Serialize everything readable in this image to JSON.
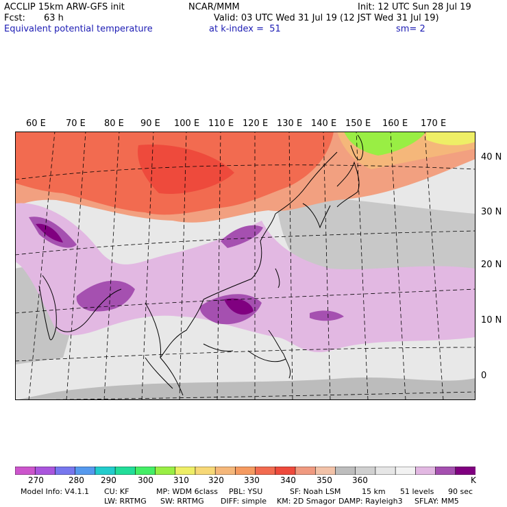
{
  "header": {
    "model": "ACCLIP 15km ARW-GFS init",
    "org": "NCAR/MMM",
    "init": "Init: 12 UTC Sun 28 Jul 19",
    "fcst_label": "Fcst:",
    "fcst_value": "63 h",
    "valid": "Valid: 03 UTC Wed 31 Jul 19 (12 JST Wed 31 Jul 19)",
    "field": "Equivalent potential temperature",
    "level": "at k-index =  51",
    "smooth": "sm= 2"
  },
  "map": {
    "longitude_labels": [
      "60 E",
      "70 E",
      "80 E",
      "90 E",
      "100 E",
      "110 E",
      "120 E",
      "130 E",
      "140 E",
      "150 E",
      "160 E",
      "170 E"
    ],
    "latitude_labels": [
      "40 N",
      "30 N",
      "20 N",
      "10 N",
      "0"
    ]
  },
  "colorbar": {
    "colors": [
      "#cc55cc",
      "#aa55dd",
      "#7777ee",
      "#5599ee",
      "#22cccc",
      "#22dd99",
      "#44ee66",
      "#99ee44",
      "#eeee66",
      "#f7d877",
      "#f5b77a",
      "#f59a60",
      "#f26b50",
      "#ee4a3c",
      "#f09a80",
      "#f2c2a8",
      "#bdbdbd",
      "#d0d0d0",
      "#e6e6e6",
      "#f2f2f2",
      "#e2b8e2",
      "#a550b0",
      "#800080"
    ],
    "labels": [
      "270",
      "280",
      "290",
      "300",
      "310",
      "320",
      "330",
      "340",
      "350",
      "360",
      "K"
    ]
  },
  "footer": {
    "line1": [
      "Model Info: V4.1.1",
      "CU: KF",
      "MP: WDM 6class",
      "PBL: YSU",
      "SF: Noah LSM",
      "15 km",
      "51 levels",
      "90 sec"
    ],
    "line2": [
      "LW: RRTMG",
      "SW: RRTMG",
      "DIFF: simple",
      "KM: 2D Smagor",
      "DAMP: Rayleigh3",
      "SFLAY: MM5"
    ]
  }
}
